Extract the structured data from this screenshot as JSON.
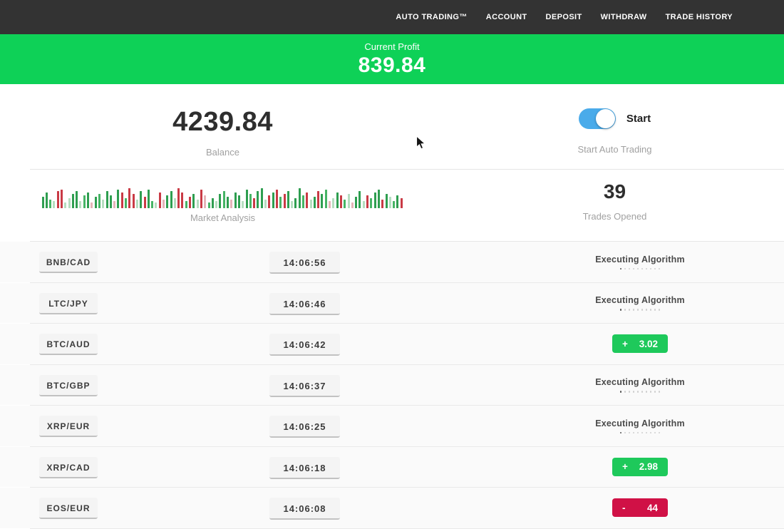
{
  "nav": {
    "items": [
      {
        "label": "AUTO TRADING™"
      },
      {
        "label": "ACCOUNT"
      },
      {
        "label": "DEPOSIT"
      },
      {
        "label": "WITHDRAW"
      },
      {
        "label": "TRADE HISTORY"
      }
    ]
  },
  "profit_banner": {
    "label": "Current Profit",
    "value": "839.84",
    "bg": "#0ed157"
  },
  "stats": {
    "balance": {
      "value": "4239.84",
      "label": "Balance"
    },
    "auto_trading": {
      "toggle_label": "Start",
      "label": "Start Auto Trading",
      "toggle_on": true,
      "toggle_color": "#4aabea"
    },
    "market_analysis": {
      "label": "Market Analysis",
      "palette": {
        "g": "#2e9e50",
        "m": "#46b465",
        "l": "#b5dec0",
        "r": "#c93a45",
        "p": "#e5b3b8"
      },
      "bars": [
        [
          16,
          "g"
        ],
        [
          22,
          "g"
        ],
        [
          12,
          "m"
        ],
        [
          10,
          "l"
        ],
        [
          24,
          "r"
        ],
        [
          26,
          "r"
        ],
        [
          8,
          "l"
        ],
        [
          14,
          "l"
        ],
        [
          20,
          "g"
        ],
        [
          24,
          "g"
        ],
        [
          10,
          "l"
        ],
        [
          18,
          "m"
        ],
        [
          22,
          "g"
        ],
        [
          8,
          "p"
        ],
        [
          16,
          "g"
        ],
        [
          20,
          "m"
        ],
        [
          12,
          "l"
        ],
        [
          24,
          "g"
        ],
        [
          18,
          "g"
        ],
        [
          10,
          "p"
        ],
        [
          26,
          "g"
        ],
        [
          22,
          "r"
        ],
        [
          14,
          "m"
        ],
        [
          28,
          "r"
        ],
        [
          20,
          "r"
        ],
        [
          12,
          "l"
        ],
        [
          24,
          "g"
        ],
        [
          16,
          "r"
        ],
        [
          26,
          "g"
        ],
        [
          10,
          "m"
        ],
        [
          8,
          "l"
        ],
        [
          22,
          "r"
        ],
        [
          12,
          "p"
        ],
        [
          18,
          "g"
        ],
        [
          24,
          "g"
        ],
        [
          14,
          "l"
        ],
        [
          28,
          "r"
        ],
        [
          22,
          "r"
        ],
        [
          10,
          "m"
        ],
        [
          16,
          "r"
        ],
        [
          20,
          "g"
        ],
        [
          12,
          "l"
        ],
        [
          26,
          "r"
        ],
        [
          18,
          "p"
        ],
        [
          8,
          "m"
        ],
        [
          14,
          "g"
        ],
        [
          10,
          "l"
        ],
        [
          20,
          "g"
        ],
        [
          24,
          "m"
        ],
        [
          16,
          "g"
        ],
        [
          12,
          "p"
        ],
        [
          22,
          "g"
        ],
        [
          18,
          "g"
        ],
        [
          10,
          "l"
        ],
        [
          26,
          "g"
        ],
        [
          20,
          "m"
        ],
        [
          14,
          "r"
        ],
        [
          24,
          "g"
        ],
        [
          28,
          "g"
        ],
        [
          12,
          "l"
        ],
        [
          18,
          "r"
        ],
        [
          22,
          "g"
        ],
        [
          26,
          "r"
        ],
        [
          16,
          "m"
        ],
        [
          20,
          "r"
        ],
        [
          24,
          "g"
        ],
        [
          10,
          "l"
        ],
        [
          14,
          "g"
        ],
        [
          28,
          "g"
        ],
        [
          18,
          "m"
        ],
        [
          22,
          "r"
        ],
        [
          12,
          "l"
        ],
        [
          16,
          "g"
        ],
        [
          24,
          "r"
        ],
        [
          20,
          "g"
        ],
        [
          26,
          "m"
        ],
        [
          10,
          "p"
        ],
        [
          14,
          "l"
        ],
        [
          22,
          "g"
        ],
        [
          18,
          "r"
        ],
        [
          12,
          "m"
        ],
        [
          20,
          "l"
        ],
        [
          8,
          "p"
        ],
        [
          16,
          "g"
        ],
        [
          24,
          "g"
        ],
        [
          10,
          "l"
        ],
        [
          18,
          "r"
        ],
        [
          14,
          "m"
        ],
        [
          22,
          "g"
        ],
        [
          26,
          "g"
        ],
        [
          12,
          "r"
        ],
        [
          20,
          "g"
        ],
        [
          16,
          "l"
        ],
        [
          10,
          "m"
        ],
        [
          18,
          "g"
        ],
        [
          14,
          "r"
        ]
      ]
    },
    "trades_opened": {
      "value": "39",
      "label": "Trades Opened"
    }
  },
  "trades": {
    "executing_label": "Executing Algorithm",
    "progress_dots": 10,
    "rows": [
      {
        "pair": "BNB/CAD",
        "time": "14:06:56",
        "status": "executing"
      },
      {
        "pair": "LTC/JPY",
        "time": "14:06:46",
        "status": "executing"
      },
      {
        "pair": "BTC/AUD",
        "time": "14:06:42",
        "status": "profit",
        "sign": "+",
        "value": "3.02"
      },
      {
        "pair": "BTC/GBP",
        "time": "14:06:37",
        "status": "executing"
      },
      {
        "pair": "XRP/EUR",
        "time": "14:06:25",
        "status": "executing"
      },
      {
        "pair": "XRP/CAD",
        "time": "14:06:18",
        "status": "profit",
        "sign": "+",
        "value": "2.98"
      },
      {
        "pair": "EOS/EUR",
        "time": "14:06:08",
        "status": "loss",
        "sign": "-",
        "value": "44"
      }
    ]
  },
  "colors": {
    "nav_bg": "#333333",
    "banner_green": "#0ed157",
    "profit_green": "#1ec95b",
    "loss_red": "#d01146",
    "toggle_blue": "#4aabea"
  }
}
